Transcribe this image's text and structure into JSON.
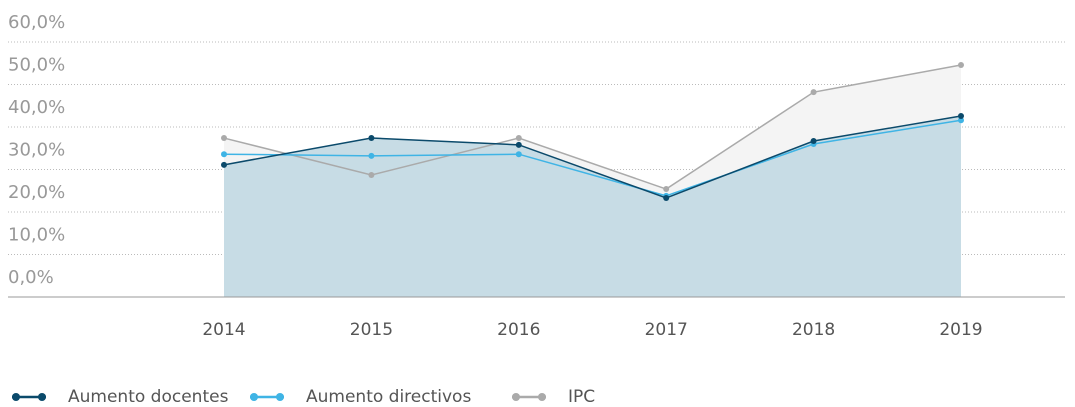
{
  "chart_data": {
    "type": "line",
    "categories": [
      "2014",
      "2015",
      "2016",
      "2017",
      "2018",
      "2019"
    ],
    "series": [
      {
        "name": "Aumento docentes",
        "color": "#0b4a6b",
        "values": [
          31.1,
          37.4,
          35.8,
          23.3,
          36.7,
          42.6
        ]
      },
      {
        "name": "Aumento directivos",
        "color": "#3fb4e5",
        "values": [
          33.6,
          33.2,
          33.6,
          23.8,
          36.0,
          41.6
        ]
      },
      {
        "name": "IPC",
        "color": "#aaaaaa",
        "values": [
          37.4,
          28.7,
          37.4,
          25.4,
          48.2,
          54.6
        ]
      }
    ],
    "ylim": [
      0,
      60
    ],
    "yticks": [
      {
        "value": 0,
        "label": "0,0%"
      },
      {
        "value": 10,
        "label": "10,0%"
      },
      {
        "value": 20,
        "label": "20,0%"
      },
      {
        "value": 30,
        "label": "30,0%"
      },
      {
        "value": 40,
        "label": "40,0%"
      },
      {
        "value": 50,
        "label": "50,0%"
      },
      {
        "value": 60,
        "label": "60,0%"
      }
    ],
    "grid": true,
    "legend": "bottom"
  }
}
